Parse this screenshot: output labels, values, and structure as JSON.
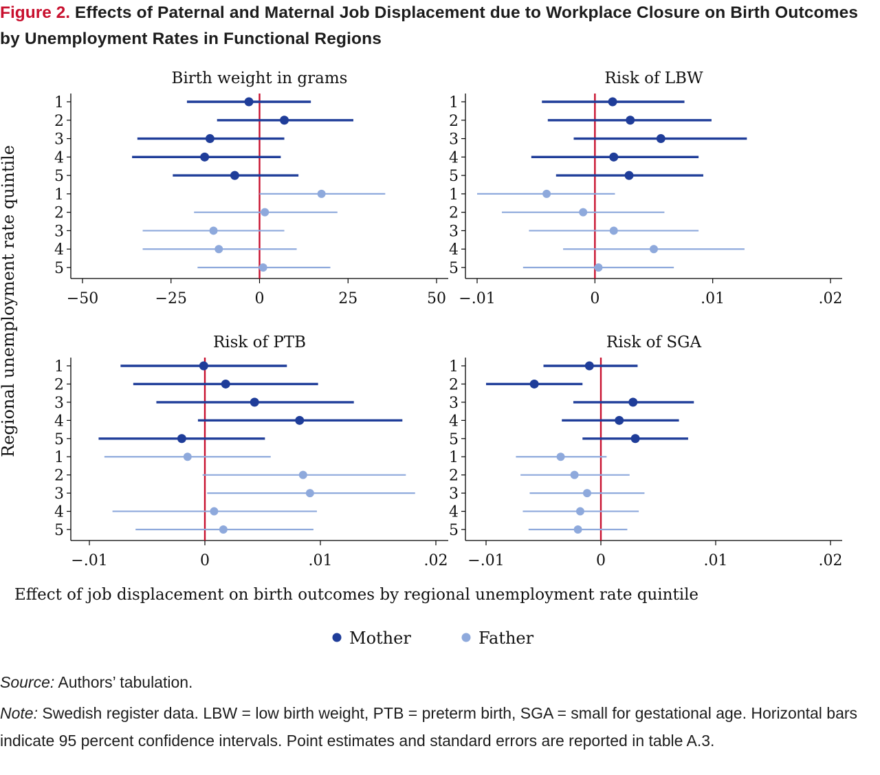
{
  "figure": {
    "label": "Figure 2.",
    "title": "Effects of Paternal and Maternal Job Displacement due to Workplace Closure on Birth Outcomes by Unemployment Rates in Functional Regions"
  },
  "source": {
    "label": "Source:",
    "text": "Authors’ tabulation."
  },
  "note": {
    "label": "Note:",
    "text": "Swedish register data. LBW = low birth weight, PTB = preterm birth, SGA = small for gestational age. Horizontal bars indicate 95 percent confidence intervals. Point estimates and standard errors are reported in table A.3."
  },
  "chart_data": {
    "type": "scatter",
    "subtype": "coefficient-plot-with-95ci",
    "ylabel": "Regional unemployment rate quintile",
    "xlabel": "Effect of job displacement on birth outcomes by regional unemployment rate quintile",
    "legend": {
      "position": "bottom",
      "entries": [
        {
          "name": "Mother",
          "color": "#1f3d99"
        },
        {
          "name": "Father",
          "color": "#8ea9dc"
        }
      ]
    },
    "reference_line": {
      "x": 0,
      "color": "#c8102e"
    },
    "grid": false,
    "row_labels": [
      "1",
      "2",
      "3",
      "4",
      "5",
      "1",
      "2",
      "3",
      "4",
      "5"
    ],
    "panels": [
      {
        "title": "Birth weight in grams",
        "xlim": [
          -50,
          50
        ],
        "xticks": [
          -50,
          -25,
          0,
          25,
          50
        ],
        "xtick_labels": [
          "−50",
          "−25",
          "0",
          "25",
          "50"
        ],
        "series": [
          {
            "name": "Mother",
            "quintiles": [
              1,
              2,
              3,
              4,
              5
            ],
            "estimate": [
              -3,
              7,
              -14,
              -15.5,
              -7
            ],
            "ci_low": [
              -20.5,
              -12,
              -34.5,
              -36,
              -24.5
            ],
            "ci_high": [
              14.5,
              26.5,
              7,
              6,
              11
            ]
          },
          {
            "name": "Father",
            "quintiles": [
              1,
              2,
              3,
              4,
              5
            ],
            "estimate": [
              17.5,
              1.5,
              -13,
              -11.5,
              1
            ],
            "ci_low": [
              0,
              -18.5,
              -33,
              -33,
              -17.5
            ],
            "ci_high": [
              35.5,
              22,
              7,
              10.5,
              20
            ]
          }
        ]
      },
      {
        "title": "Risk of LBW",
        "xlim": [
          -0.01,
          0.02
        ],
        "xticks": [
          -0.01,
          0,
          0.01,
          0.02
        ],
        "xtick_labels": [
          "−.01",
          "0",
          ".01",
          ".02"
        ],
        "series": [
          {
            "name": "Mother",
            "quintiles": [
              1,
              2,
              3,
              4,
              5
            ],
            "estimate": [
              0.0015,
              0.003,
              0.0056,
              0.0016,
              0.0029
            ],
            "ci_low": [
              -0.0045,
              -0.004,
              -0.0018,
              -0.0054,
              -0.0033
            ],
            "ci_high": [
              0.0076,
              0.0099,
              0.0129,
              0.0088,
              0.0092
            ]
          },
          {
            "name": "Father",
            "quintiles": [
              1,
              2,
              3,
              4,
              5
            ],
            "estimate": [
              -0.0041,
              -0.001,
              0.0016,
              0.005,
              0.0003
            ],
            "ci_low": [
              -0.01,
              -0.0079,
              -0.0056,
              -0.0027,
              -0.0061
            ],
            "ci_high": [
              0.0017,
              0.0059,
              0.0088,
              0.0127,
              0.0067
            ]
          }
        ]
      },
      {
        "title": "Risk of PTB",
        "xlim": [
          -0.01,
          0.02
        ],
        "xticks": [
          -0.01,
          0,
          0.01,
          0.02
        ],
        "xtick_labels": [
          "−.01",
          "0",
          ".01",
          ".02"
        ],
        "series": [
          {
            "name": "Mother",
            "quintiles": [
              1,
              2,
              3,
              4,
              5
            ],
            "estimate": [
              -0.0001,
              0.0018,
              0.0043,
              0.0082,
              -0.002
            ],
            "ci_low": [
              -0.0073,
              -0.0062,
              -0.0042,
              -0.0006,
              -0.0092
            ],
            "ci_high": [
              0.0071,
              0.0098,
              0.0129,
              0.0171,
              0.0052
            ]
          },
          {
            "name": "Father",
            "quintiles": [
              1,
              2,
              3,
              4,
              5
            ],
            "estimate": [
              -0.0015,
              0.0085,
              0.0091,
              0.0008,
              0.0016
            ],
            "ci_low": [
              -0.0087,
              -0.0002,
              0.0002,
              -0.008,
              -0.006
            ],
            "ci_high": [
              0.0057,
              0.0174,
              0.0182,
              0.0097,
              0.0094
            ]
          }
        ]
      },
      {
        "title": "Risk of SGA",
        "xlim": [
          -0.01,
          0.02
        ],
        "xticks": [
          -0.01,
          0,
          0.01,
          0.02
        ],
        "xtick_labels": [
          "−.01",
          "0",
          ".01",
          ".02"
        ],
        "series": [
          {
            "name": "Mother",
            "quintiles": [
              1,
              2,
              3,
              4,
              5
            ],
            "estimate": [
              -0.001,
              -0.0058,
              0.0028,
              0.0016,
              0.003
            ],
            "ci_low": [
              -0.005,
              -0.01,
              -0.0024,
              -0.0034,
              -0.0016
            ],
            "ci_high": [
              0.0032,
              -0.0016,
              0.0081,
              0.0068,
              0.0076
            ]
          },
          {
            "name": "Father",
            "quintiles": [
              1,
              2,
              3,
              4,
              5
            ],
            "estimate": [
              -0.0035,
              -0.0023,
              -0.0012,
              -0.0018,
              -0.002
            ],
            "ci_low": [
              -0.0074,
              -0.007,
              -0.0062,
              -0.0068,
              -0.0063
            ],
            "ci_high": [
              0.0005,
              0.0025,
              0.0038,
              0.0033,
              0.0023
            ]
          }
        ]
      }
    ]
  }
}
